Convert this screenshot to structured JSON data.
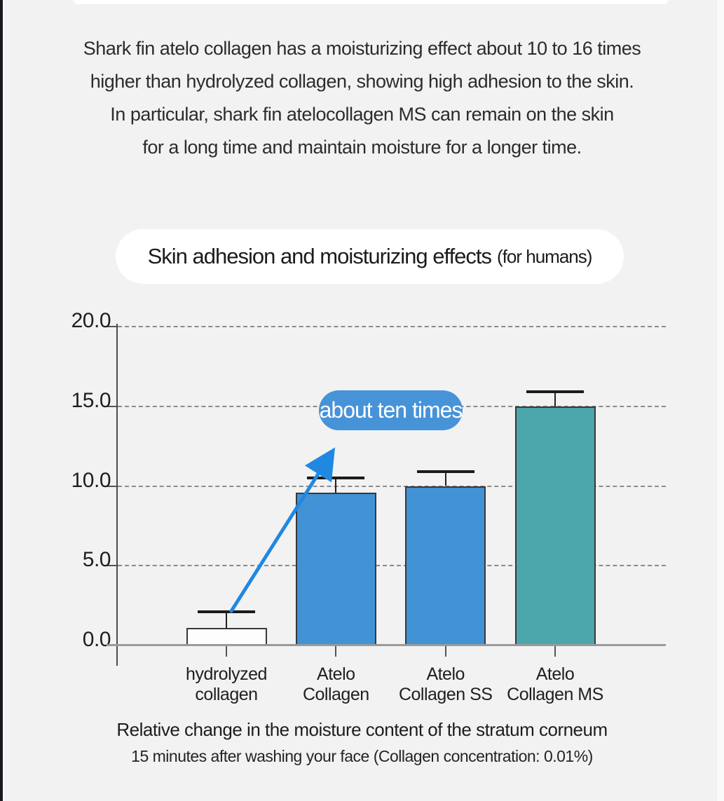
{
  "page": {
    "background": "#f2f2f3",
    "intro_lines": [
      "Shark fin atelo collagen has a moisturizing effect about 10 to 16 times",
      "higher than hydrolyzed collagen, showing high adhesion to the skin.",
      "In particular, shark fin atelocollagen MS can remain on the skin",
      "for a long time and maintain moisture for a longer time."
    ]
  },
  "chart": {
    "title": "Skin adhesion and moisturizing effects",
    "title_suffix": "(for humans)",
    "annotation_label": "about ten times",
    "annotation_color": "#4793d8",
    "arrow_color": "#2088e0",
    "caption_line1": "Relative change in the moisture content of the stratum corneum",
    "caption_line2": "15 minutes after washing your face (Collagen concentration: 0.01%)"
  },
  "chart_data": {
    "type": "bar",
    "title": "Skin adhesion and moisturizing effects (for humans)",
    "categories": [
      "hydrolyzed collagen",
      "Atelo Collagen",
      "Atelo Collagen SS",
      "Atelo Collagen MS"
    ],
    "label_lines": [
      [
        "hydrolyzed",
        "collagen"
      ],
      [
        "Atelo",
        "Collagen"
      ],
      [
        "Atelo",
        "Collagen SS"
      ],
      [
        "Atelo",
        "Collagen MS"
      ]
    ],
    "values": [
      1.1,
      9.6,
      10.0,
      15.0
    ],
    "error_upper": [
      2.1,
      10.5,
      10.9,
      15.9
    ],
    "bar_colors": [
      "#fdfdfd",
      "#4292d6",
      "#4292d6",
      "#4ba7ab"
    ],
    "y_ticks": [
      0.0,
      5.0,
      10.0,
      15.0,
      20.0
    ],
    "ylim": [
      0,
      20
    ],
    "xlabel": "",
    "ylabel": "",
    "grid": "horizontal-dashed",
    "legend": "none",
    "annotation": "about ten times (arrow from hydrolyzed collagen to Atelo Collagen)"
  }
}
